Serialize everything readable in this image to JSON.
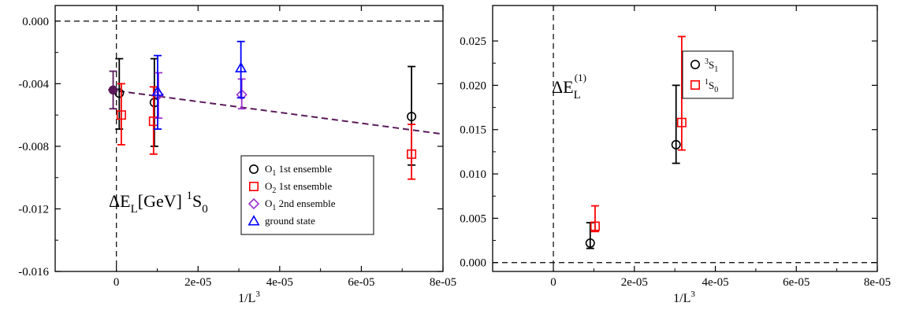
{
  "colors": {
    "black": "#000000",
    "red": "#ff0000",
    "violet": "#9932cc",
    "blue": "#0000ff",
    "fit": "#5a1a5a"
  },
  "chart_data": [
    {
      "type": "scatter",
      "xlabel_main": "1/L",
      "xlabel_sup": "3",
      "ylabel": "",
      "xlim": [
        -1.5e-05,
        8e-05
      ],
      "ylim": [
        -0.016,
        0.001
      ],
      "xticks": [
        0,
        2e-05,
        4e-05,
        6e-05,
        8e-05
      ],
      "xtick_labels": [
        "0",
        "2e-05",
        "4e-05",
        "6e-05",
        "8e-05"
      ],
      "yticks": [
        -0.016,
        -0.012,
        -0.008,
        -0.004,
        0.0
      ],
      "ytick_labels": [
        "-0.016",
        "-0.012",
        "-0.008",
        "-0.004",
        "0.000"
      ],
      "annotation": {
        "main": "ΔE",
        "sub": "L",
        "mid": "[GeV] ",
        "sup": "1",
        "end": "S",
        "sub2": "0"
      },
      "legend_position": "bottom-right",
      "legend": [
        {
          "pre": "O",
          "sub": "1",
          "post": " 1st ensemble",
          "marker": "circle",
          "color": "#000000"
        },
        {
          "pre": "O",
          "sub": "2",
          "post": " 1st ensemble",
          "marker": "square",
          "color": "#ff0000"
        },
        {
          "pre": "O",
          "sub": "1",
          "post": " 2nd ensemble",
          "marker": "diamond",
          "color": "#9932cc"
        },
        {
          "pre": "ground state",
          "sub": "",
          "post": "",
          "marker": "triangle",
          "color": "#0000ff"
        }
      ],
      "series": [
        {
          "marker": "circle",
          "color": "#000000",
          "points": [
            {
              "x": 7e-07,
              "y": -0.0046,
              "lo": -0.0069,
              "hi": -0.0024
            },
            {
              "x": 9.3e-06,
              "y": -0.0052,
              "lo": -0.008,
              "hi": -0.0024
            },
            {
              "x": 7.23e-05,
              "y": -0.0061,
              "lo": -0.0092,
              "hi": -0.0029
            }
          ]
        },
        {
          "marker": "square",
          "color": "#ff0000",
          "points": [
            {
              "x": 1.2e-06,
              "y": -0.006,
              "lo": -0.0079,
              "hi": -0.004
            },
            {
              "x": 9.1e-06,
              "y": -0.0064,
              "lo": -0.0085,
              "hi": -0.0042
            },
            {
              "x": 7.23e-05,
              "y": -0.0085,
              "lo": -0.0101,
              "hi": -0.0066
            }
          ]
        },
        {
          "marker": "diamond",
          "color": "#9932cc",
          "points": [
            {
              "x": 1.03e-05,
              "y": -0.0047,
              "lo": -0.0062,
              "hi": -0.0033
            },
            {
              "x": 3.07e-05,
              "y": -0.0047,
              "lo": -0.0056,
              "hi": -0.0037
            }
          ]
        },
        {
          "marker": "triangle",
          "color": "#0000ff",
          "points": [
            {
              "x": 1.01e-05,
              "y": -0.0045,
              "lo": -0.0069,
              "hi": -0.0022
            },
            {
              "x": 3.05e-05,
              "y": -0.003,
              "lo": -0.0049,
              "hi": -0.0013
            }
          ]
        },
        {
          "marker": "filled-circle",
          "color": "#5a1a5a",
          "points": [
            {
              "x": -8e-07,
              "y": -0.0044,
              "lo": -0.0056,
              "hi": -0.0032
            }
          ]
        }
      ],
      "fit_line": {
        "x": [
          -2e-06,
          8e-05
        ],
        "y": [
          -0.00438,
          -0.00722
        ]
      }
    },
    {
      "type": "scatter",
      "xlabel_main": "1/L",
      "xlabel_sup": "3",
      "ylabel": "",
      "xlim": [
        -1.5e-05,
        8e-05
      ],
      "ylim": [
        -0.001,
        0.029
      ],
      "xticks": [
        0,
        2e-05,
        4e-05,
        6e-05,
        8e-05
      ],
      "xtick_labels": [
        "0",
        "2e-05",
        "4e-05",
        "6e-05",
        "8e-05"
      ],
      "yticks": [
        0.0,
        0.005,
        0.01,
        0.015,
        0.02,
        0.025
      ],
      "ytick_labels": [
        "0.000",
        "0.005",
        "0.010",
        "0.015",
        "0.020",
        "0.025"
      ],
      "annotation": {
        "main": "ΔE",
        "sub": "L",
        "sup": "(1)"
      },
      "legend_position": "top-right",
      "legend": [
        {
          "sup": "3",
          "pre": "S",
          "sub": "1",
          "marker": "circle",
          "color": "#000000"
        },
        {
          "sup": "1",
          "pre": "S",
          "sub": "0",
          "marker": "square",
          "color": "#ff0000"
        }
      ],
      "series": [
        {
          "marker": "circle",
          "color": "#000000",
          "points": [
            {
              "x": 9.1e-06,
              "y": 0.0022,
              "lo": 0.0016,
              "hi": 0.0045
            },
            {
              "x": 3.03e-05,
              "y": 0.0133,
              "lo": 0.0112,
              "hi": 0.02
            }
          ]
        },
        {
          "marker": "square",
          "color": "#ff0000",
          "points": [
            {
              "x": 1.03e-05,
              "y": 0.0041,
              "lo": 0.0035,
              "hi": 0.0064
            },
            {
              "x": 3.17e-05,
              "y": 0.0158,
              "lo": 0.0127,
              "hi": 0.0255
            }
          ]
        }
      ]
    }
  ]
}
